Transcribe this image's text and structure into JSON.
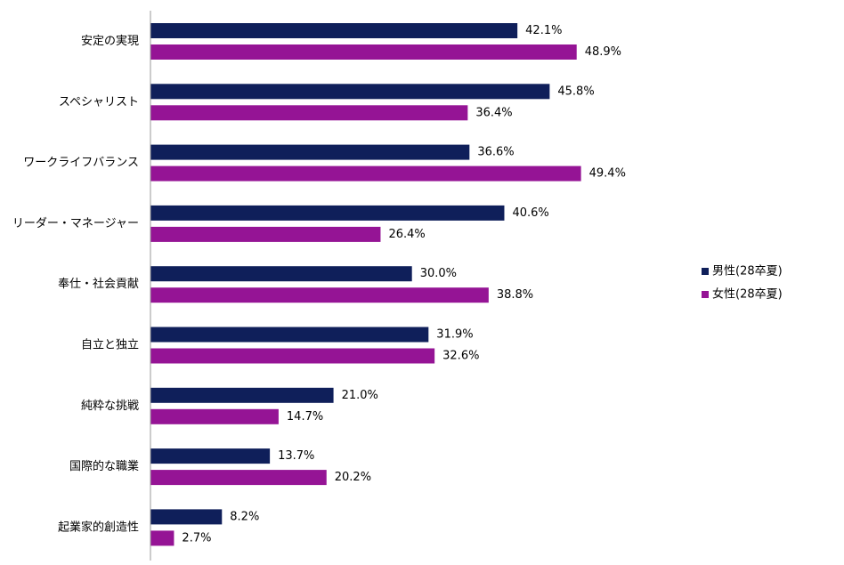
{
  "chart_data": {
    "type": "bar",
    "orientation": "horizontal",
    "categories": [
      "安定の実現",
      "スペシャリスト",
      "ワークライフバランス",
      "リーダー・マネージャー",
      "奉仕・社会貢献",
      "自立と独立",
      "純粋な挑戦",
      "国際的な職業",
      "起業家的創造性"
    ],
    "series": [
      {
        "name": "男性(28卒夏)",
        "color": "#0f1f5a",
        "values": [
          42.1,
          45.8,
          36.6,
          40.6,
          30.0,
          31.9,
          21.0,
          13.7,
          8.2
        ]
      },
      {
        "name": "女性(28卒夏)",
        "color": "#951495",
        "values": [
          48.9,
          36.4,
          49.4,
          26.4,
          38.8,
          32.6,
          14.7,
          20.2,
          2.7
        ]
      }
    ],
    "value_suffix": "%",
    "xlim": [
      0,
      60
    ],
    "grid": false,
    "legend_position": "right"
  }
}
